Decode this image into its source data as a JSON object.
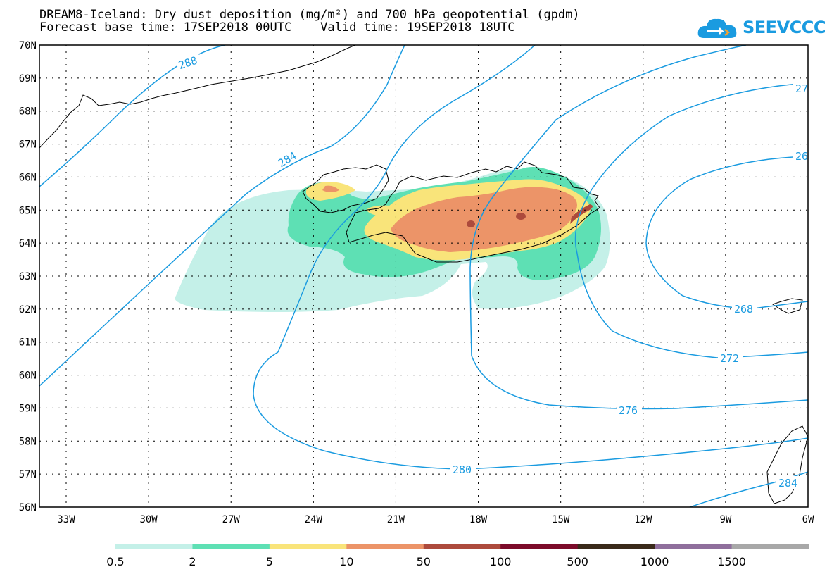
{
  "header": {
    "title": "DREAM8-Iceland: Dry dust deposition (mg/m²) and 700 hPa geopotential (gpdm)",
    "subtitle": "Forecast base time: 17SEP2018 00UTC    Valid time: 19SEP2018 18UTC",
    "logo_text": "SEEVCCC"
  },
  "map": {
    "lat_labels": [
      "70N",
      "69N",
      "68N",
      "67N",
      "66N",
      "65N",
      "64N",
      "63N",
      "62N",
      "61N",
      "60N",
      "59N",
      "58N",
      "57N",
      "56N"
    ],
    "lon_labels": [
      "33W",
      "30W",
      "27W",
      "24W",
      "21W",
      "18W",
      "15W",
      "12W",
      "9W",
      "6W"
    ],
    "gridlines": true,
    "contour_color": "#1a9be0",
    "contour_labels": [
      "288",
      "284",
      "280",
      "276",
      "272",
      "268",
      "27",
      "26",
      "284"
    ]
  },
  "colorbar": {
    "labels": [
      "0.5",
      "2",
      "5",
      "10",
      "50",
      "100",
      "500",
      "1000",
      "1500"
    ],
    "colors": [
      "#c4f0e8",
      "#5ee0b4",
      "#f9e47a",
      "#ec9468",
      "#ad4a3c",
      "#7c0b2a",
      "#3a2a1a",
      "#8f6f9c",
      "#a8a8a8"
    ]
  }
}
